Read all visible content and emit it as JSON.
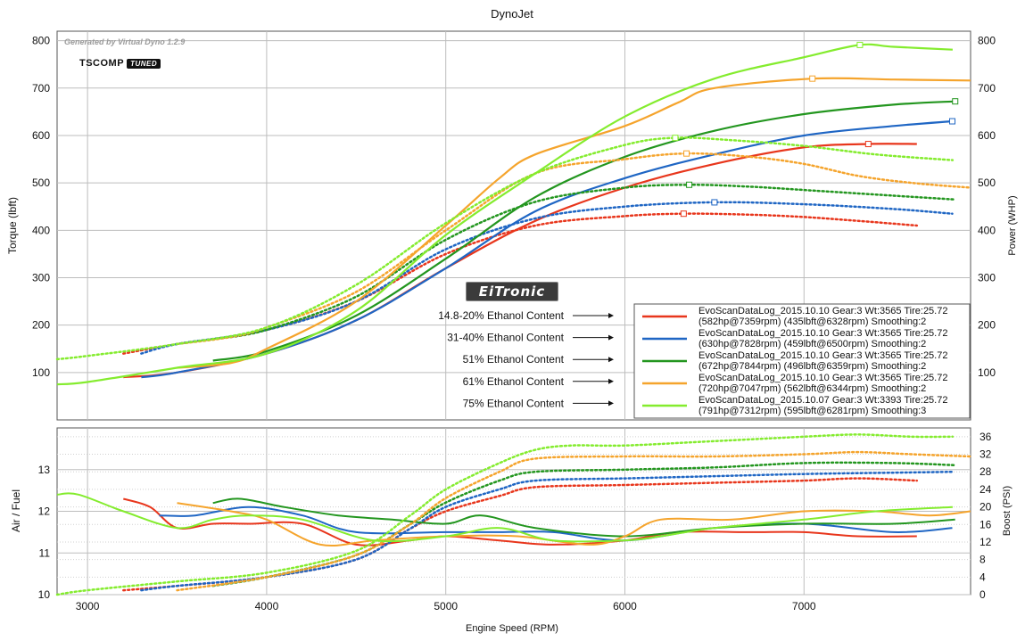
{
  "generated_text": "Generated by Virtual Dyno 1.2.9",
  "logo_text": "TSCOMP",
  "logo_badge": "TUNED",
  "brand_text": "EiTronic",
  "chart_data": [
    {
      "type": "line",
      "title": "DynoJet",
      "xlabel": "",
      "ylabel": "Torque (lbft)",
      "y2label": "Power (WHP)",
      "xlim": [
        2830,
        7930
      ],
      "ylim": [
        0,
        820
      ],
      "x_ticks": [
        3000,
        4000,
        5000,
        6000,
        7000
      ],
      "y_ticks": [
        100,
        200,
        300,
        400,
        500,
        600,
        700,
        800
      ],
      "grid": true,
      "legend_position": "bottom-right",
      "legend": [
        {
          "line1": "EvoScanDataLog_2015.10.10 Gear:3 Wt:3565 Tire:25.72",
          "line2": "(582hp@7359rpm) (435lbft@6328rpm) Smoothing:2"
        },
        {
          "line1": "EvoScanDataLog_2015.10.10 Gear:3 Wt:3565 Tire:25.72",
          "line2": "(630hp@7828rpm) (459lbft@6500rpm) Smoothing:2"
        },
        {
          "line1": "EvoScanDataLog_2015.10.10 Gear:3 Wt:3565 Tire:25.72",
          "line2": "(672hp@7844rpm) (496lbft@6359rpm) Smoothing:2"
        },
        {
          "line1": "EvoScanDataLog_2015.10.10 Gear:3 Wt:3565 Tire:25.72",
          "line2": "(720hp@7047rpm) (562lbft@6344rpm) Smoothing:2"
        },
        {
          "line1": "EvoScanDataLog_2015.10.07 Gear:3 Wt:3393 Tire:25.72",
          "line2": "(791hp@7312rpm) (595lbft@6281rpm) Smoothing:3"
        }
      ],
      "annotations": [
        "14.8-20% Ethanol Content",
        "31-40% Ethanol Content",
        "51% Ethanol Content",
        "61% Ethanol Content",
        "75% Ethanol Content"
      ],
      "series": [
        {
          "name": "14.8-20% Ethanol Content",
          "color": "#e8361c",
          "power": {
            "x": [
              3200,
              3500,
              4000,
              4500,
              5000,
              5500,
              6000,
              6500,
              7000,
              7359,
              7630
            ],
            "y": [
              90,
              100,
              140,
              210,
              320,
              420,
              490,
              540,
              575,
              582,
              582
            ]
          },
          "torque": {
            "x": [
              3200,
              3500,
              4000,
              4500,
              5000,
              5500,
              6000,
              6328,
              6700,
              7000,
              7300,
              7630
            ],
            "y": [
              140,
              160,
              190,
              250,
              350,
              410,
              430,
              435,
              433,
              428,
              420,
              410
            ]
          },
          "power_peak": [
            7359,
            582
          ],
          "torque_peak": [
            6328,
            435
          ]
        },
        {
          "name": "31-40% Ethanol Content",
          "color": "#1f66c4",
          "power": {
            "x": [
              3300,
              3500,
              4000,
              4500,
              5000,
              5500,
              6000,
              6500,
              7000,
              7500,
              7828
            ],
            "y": [
              90,
              100,
              140,
              210,
              320,
              440,
              510,
              560,
              600,
              620,
              630
            ]
          },
          "torque": {
            "x": [
              3300,
              3500,
              4000,
              4500,
              5000,
              5500,
              6000,
              6500,
              7000,
              7500,
              7828
            ],
            "y": [
              140,
              160,
              190,
              250,
              360,
              425,
              450,
              459,
              455,
              445,
              435
            ]
          },
          "power_peak": [
            7828,
            630
          ],
          "torque_peak": [
            6500,
            459
          ]
        },
        {
          "name": "51% Ethanol Content",
          "color": "#23961f",
          "power": {
            "x": [
              3700,
              4000,
              4500,
              5000,
              5500,
              6000,
              6500,
              7000,
              7500,
              7844
            ],
            "y": [
              125,
              145,
              220,
              340,
              470,
              555,
              610,
              645,
              665,
              672
            ]
          },
          "torque": {
            "x": [
              3700,
              4000,
              4500,
              5000,
              5500,
              6000,
              6359,
              6700,
              7000,
              7500,
              7844
            ],
            "y": [
              170,
              190,
              260,
              380,
              460,
              490,
              496,
              492,
              485,
              473,
              465
            ]
          },
          "power_peak": [
            7844,
            672
          ],
          "torque_peak": [
            6359,
            496
          ]
        },
        {
          "name": "61% Ethanol Content",
          "color": "#f5a42c",
          "power": {
            "x": [
              3500,
              3800,
              4000,
              4500,
              5000,
              5300,
              5500,
              6000,
              6300,
              6500,
              7047,
              7500,
              7930
            ],
            "y": [
              110,
              120,
              150,
              250,
              410,
              510,
              560,
              620,
              670,
              700,
              720,
              718,
              716
            ]
          },
          "torque": {
            "x": [
              3500,
              3800,
              4000,
              4500,
              5000,
              5500,
              6000,
              6344,
              6700,
              7000,
              7300,
              7600,
              7930
            ],
            "y": [
              160,
              175,
              195,
              270,
              400,
              520,
              550,
              562,
              555,
              540,
              515,
              500,
              490
            ]
          },
          "power_peak": [
            7047,
            720
          ],
          "torque_peak": [
            6344,
            562
          ]
        },
        {
          "name": "75% Ethanol Content",
          "color": "#84ec2e",
          "power": {
            "x": [
              2830,
              3000,
              3500,
              4000,
              4500,
              5000,
              5500,
              6000,
              6500,
              7000,
              7312,
              7500,
              7830
            ],
            "y": [
              75,
              80,
              110,
              140,
              230,
              390,
              520,
              640,
              720,
              765,
              791,
              787,
              781
            ]
          },
          "torque": {
            "x": [
              2830,
              3000,
              3500,
              4000,
              4500,
              5000,
              5500,
              6000,
              6281,
              6600,
              7000,
              7400,
              7830
            ],
            "y": [
              128,
              135,
              160,
              195,
              285,
              415,
              520,
              580,
              595,
              590,
              578,
              560,
              548
            ]
          },
          "power_peak": [
            7312,
            791
          ],
          "torque_peak": [
            6281,
            595
          ]
        }
      ]
    },
    {
      "type": "line",
      "title": "",
      "xlabel": "Engine Speed (RPM)",
      "ylabel": "Air / Fuel",
      "y2label": "Boost (PSI)",
      "xlim": [
        2830,
        7930
      ],
      "ylim": [
        10,
        14
      ],
      "y2lim": [
        0,
        38
      ],
      "x_ticks": [
        3000,
        4000,
        5000,
        6000,
        7000
      ],
      "x_tick_labels": [
        "3000",
        "4000",
        "5000",
        "6000",
        "7000"
      ],
      "y_ticks": [
        10,
        11,
        12,
        13
      ],
      "y2_ticks": [
        0,
        4,
        8,
        12,
        16,
        20,
        24,
        28,
        32,
        36
      ],
      "grid": true,
      "series": [
        {
          "name": "14.8-20% Ethanol Content",
          "color": "#e8361c",
          "afr": {
            "x": [
              3200,
              3350,
              3500,
              3700,
              3900,
              4200,
              4500,
              4800,
              5000,
              5300,
              5600,
              6000,
              6300,
              6700,
              7000,
              7300,
              7630
            ],
            "y": [
              12.3,
              12.1,
              11.6,
              11.7,
              11.7,
              11.7,
              11.2,
              11.3,
              11.4,
              11.3,
              11.2,
              11.3,
              11.5,
              11.5,
              11.5,
              11.4,
              11.4
            ]
          },
          "boost": {
            "x": [
              3200,
              3500,
              4000,
              4500,
              4800,
              5000,
              5300,
              5500,
              6000,
              6500,
              7000,
              7300,
              7630
            ],
            "y": [
              1,
              2,
              4,
              8,
              15,
              19,
              22.5,
              24.5,
              25,
              25.5,
              26,
              26.5,
              26
            ]
          }
        },
        {
          "name": "31-40% Ethanol Content",
          "color": "#1f66c4",
          "afr": {
            "x": [
              3400,
              3600,
              3900,
              4200,
              4500,
              5000,
              5300,
              5600,
              6000,
              6500,
              7000,
              7500,
              7828
            ],
            "y": [
              11.9,
              11.9,
              12.1,
              11.9,
              11.5,
              11.5,
              11.5,
              11.5,
              11.3,
              11.6,
              11.7,
              11.5,
              11.6
            ]
          },
          "boost": {
            "x": [
              3300,
              3500,
              4000,
              4500,
              4800,
              5000,
              5300,
              5500,
              6000,
              6500,
              7000,
              7500,
              7828
            ],
            "y": [
              1,
              2,
              4,
              8,
              15,
              20,
              24,
              26,
              26.5,
              27,
              27.5,
              27.8,
              28
            ]
          }
        },
        {
          "name": "51% Ethanol Content",
          "color": "#23961f",
          "afr": {
            "x": [
              3700,
              3850,
              4100,
              4400,
              4700,
              5000,
              5200,
              5500,
              6000,
              6500,
              7000,
              7500,
              7844
            ],
            "y": [
              12.2,
              12.3,
              12.1,
              11.9,
              11.8,
              11.7,
              11.9,
              11.6,
              11.4,
              11.6,
              11.7,
              11.7,
              11.8
            ]
          },
          "boost": {
            "x": [
              3700,
              4000,
              4500,
              4800,
              5000,
              5300,
              5500,
              6000,
              6500,
              7000,
              7500,
              7844
            ],
            "y": [
              2,
              4,
              9,
              16,
              21,
              26,
              28,
              28.5,
              29,
              30,
              30,
              29.5
            ]
          }
        },
        {
          "name": "61% Ethanol Content",
          "color": "#f5a42c",
          "afr": {
            "x": [
              3500,
              3800,
              4000,
              4300,
              4600,
              5000,
              5400,
              5800,
              6000,
              6200,
              6600,
              7000,
              7400,
              7700,
              7930
            ],
            "y": [
              12.2,
              12.0,
              11.8,
              11.2,
              11.3,
              11.4,
              11.4,
              11.2,
              11.4,
              11.8,
              11.8,
              12.0,
              12.0,
              11.9,
              12.0
            ]
          },
          "boost": {
            "x": [
              3500,
              4000,
              4500,
              4800,
              5000,
              5300,
              5500,
              6000,
              6500,
              7000,
              7300,
              7600,
              7930
            ],
            "y": [
              1,
              4,
              9,
              16,
              22,
              28,
              31,
              31.5,
              31.5,
              32,
              32.5,
              32,
              31.5
            ]
          }
        },
        {
          "name": "75% Ethanol Content",
          "color": "#84ec2e",
          "afr": {
            "x": [
              2830,
              2950,
              3200,
              3500,
              3700,
              3900,
              4200,
              4600,
              5000,
              5300,
              5600,
              6000,
              6200,
              6500,
              7000,
              7400,
              7830
            ],
            "y": [
              12.4,
              12.4,
              12.0,
              11.6,
              11.8,
              11.9,
              11.8,
              11.3,
              11.4,
              11.6,
              11.3,
              11.3,
              11.4,
              11.6,
              11.8,
              12.0,
              12.1
            ]
          },
          "boost": {
            "x": [
              2830,
              3000,
              3500,
              4000,
              4500,
              4800,
              5000,
              5300,
              5500,
              5700,
              6000,
              6500,
              7000,
              7300,
              7600,
              7830
            ],
            "y": [
              0,
              1,
              3,
              5,
              10,
              18,
              24,
              30,
              33,
              34,
              34,
              35,
              36,
              36.5,
              36,
              36
            ]
          }
        }
      ]
    }
  ]
}
